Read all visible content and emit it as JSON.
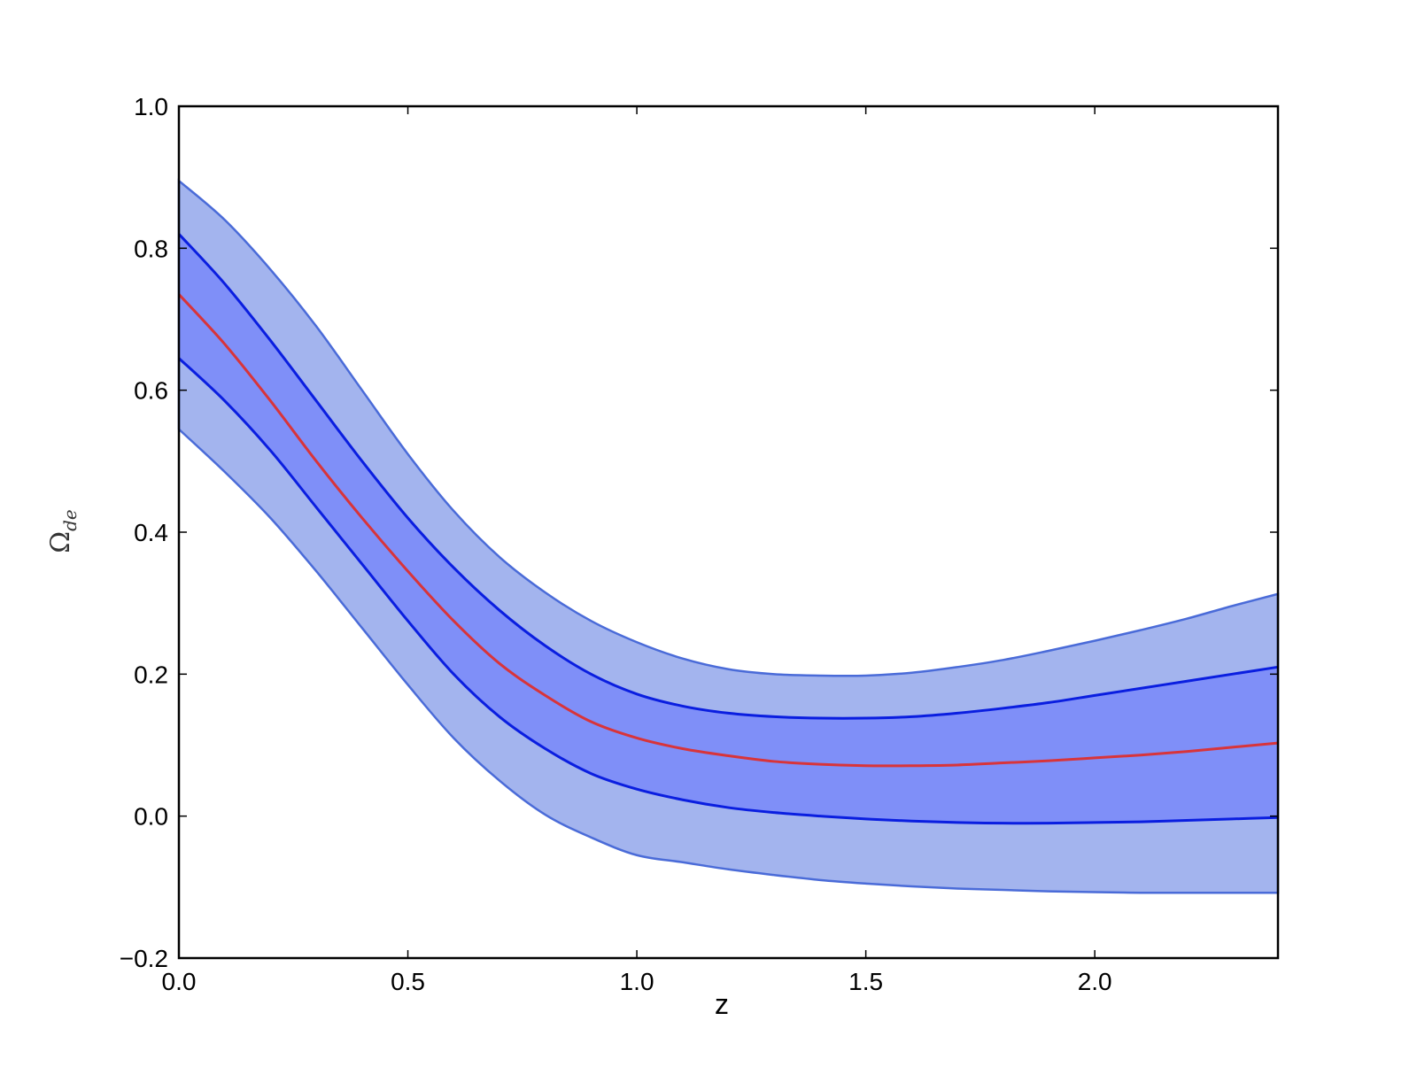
{
  "chart_data": {
    "type": "area",
    "title": "",
    "xlabel": "z",
    "ylabel": "Ω_de",
    "ylabel_main": "Ω",
    "ylabel_sub": "de",
    "xlim": [
      0.0,
      2.4
    ],
    "ylim": [
      -0.2,
      1.0
    ],
    "xticks": [
      0.0,
      0.5,
      1.0,
      1.5,
      2.0
    ],
    "xtick_labels": [
      "0.0",
      "0.5",
      "1.0",
      "1.5",
      "2.0"
    ],
    "yticks": [
      -0.2,
      0.0,
      0.2,
      0.4,
      0.6,
      0.8,
      1.0
    ],
    "ytick_labels": [
      "−0.2",
      "0.0",
      "0.2",
      "0.4",
      "0.6",
      "0.8",
      "1.0"
    ],
    "grid": false,
    "legend": "none",
    "x": [
      0.0,
      0.1,
      0.2,
      0.3,
      0.4,
      0.5,
      0.6,
      0.7,
      0.8,
      0.9,
      1.0,
      1.1,
      1.2,
      1.3,
      1.4,
      1.5,
      1.6,
      1.7,
      1.8,
      1.9,
      2.0,
      2.1,
      2.2,
      2.3,
      2.4
    ],
    "series": [
      {
        "role": "outer-upper",
        "values": [
          0.895,
          0.84,
          0.77,
          0.69,
          0.6,
          0.51,
          0.43,
          0.365,
          0.315,
          0.275,
          0.245,
          0.222,
          0.207,
          0.2,
          0.198,
          0.198,
          0.202,
          0.21,
          0.22,
          0.233,
          0.247,
          0.262,
          0.278,
          0.296,
          0.313
        ]
      },
      {
        "role": "inner-upper",
        "values": [
          0.82,
          0.75,
          0.67,
          0.585,
          0.5,
          0.42,
          0.35,
          0.29,
          0.24,
          0.2,
          0.172,
          0.155,
          0.145,
          0.14,
          0.138,
          0.138,
          0.14,
          0.145,
          0.152,
          0.16,
          0.17,
          0.18,
          0.19,
          0.2,
          0.21
        ]
      },
      {
        "role": "mean",
        "values": [
          0.735,
          0.665,
          0.585,
          0.5,
          0.42,
          0.345,
          0.275,
          0.215,
          0.17,
          0.133,
          0.11,
          0.095,
          0.085,
          0.077,
          0.073,
          0.071,
          0.071,
          0.072,
          0.075,
          0.078,
          0.082,
          0.086,
          0.091,
          0.097,
          0.103
        ]
      },
      {
        "role": "inner-lower",
        "values": [
          0.645,
          0.585,
          0.515,
          0.435,
          0.355,
          0.275,
          0.2,
          0.14,
          0.095,
          0.06,
          0.038,
          0.023,
          0.012,
          0.005,
          0.0,
          -0.004,
          -0.007,
          -0.009,
          -0.01,
          -0.01,
          -0.009,
          -0.008,
          -0.006,
          -0.004,
          -0.002
        ]
      },
      {
        "role": "outer-lower",
        "values": [
          0.545,
          0.485,
          0.42,
          0.345,
          0.265,
          0.185,
          0.11,
          0.05,
          0.002,
          -0.03,
          -0.055,
          -0.065,
          -0.075,
          -0.083,
          -0.09,
          -0.095,
          -0.099,
          -0.102,
          -0.104,
          -0.106,
          -0.107,
          -0.108,
          -0.108,
          -0.108,
          -0.108
        ]
      }
    ],
    "colors": {
      "outer_band": "#a3b4ee",
      "inner_band": "#7f8ff8",
      "band_edges": "#0a1ee0",
      "outer_edges": "#4a6bd8",
      "mean_line": "#d8343a"
    }
  }
}
